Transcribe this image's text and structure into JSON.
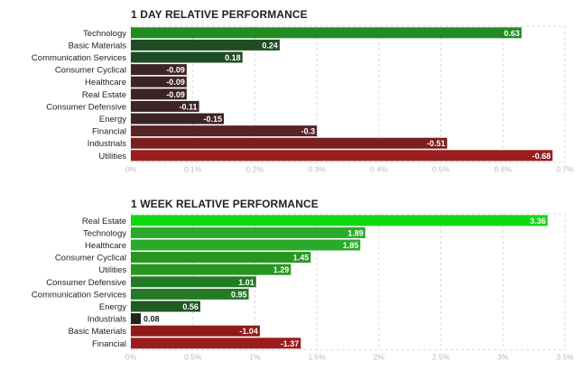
{
  "chart_data": [
    {
      "type": "bar",
      "orientation": "horizontal",
      "title": "1 DAY RELATIVE PERFORMANCE",
      "categories": [
        "Technology",
        "Basic Materials",
        "Communication Services",
        "Consumer Cyclical",
        "Healthcare",
        "Real Estate",
        "Consumer Defensive",
        "Energy",
        "Financial",
        "Industrials",
        "Utilities"
      ],
      "values": [
        0.63,
        0.24,
        0.18,
        -0.09,
        -0.09,
        -0.09,
        -0.11,
        -0.15,
        -0.3,
        -0.51,
        -0.68
      ],
      "value_labels": [
        "0.63",
        "0.24",
        "0.18",
        "-0.09",
        "-0.09",
        "-0.09",
        "-0.11",
        "-0.15",
        "-0.3",
        "-0.51",
        "-0.68"
      ],
      "colors": [
        "#228b22",
        "#1f4d23",
        "#1f4d23",
        "#3d2424",
        "#3d2424",
        "#3d2424",
        "#3d2424",
        "#3d2424",
        "#5a2424",
        "#7a1e1e",
        "#9a1c1c"
      ],
      "xlim": [
        0,
        0.7
      ],
      "xticks": [
        "0%",
        "0.1%",
        "0.2%",
        "0.3%",
        "0.4%",
        "0.5%",
        "0.6%",
        "0.7%"
      ],
      "bar_length": "absolute value",
      "grid": true
    },
    {
      "type": "bar",
      "orientation": "horizontal",
      "title": "1 WEEK RELATIVE PERFORMANCE",
      "categories": [
        "Real Estate",
        "Technology",
        "Healthcare",
        "Consumer Cyclical",
        "Utilities",
        "Consumer Defensive",
        "Communication Services",
        "Energy",
        "Industrials",
        "Basic Materials",
        "Financial"
      ],
      "values": [
        3.36,
        1.89,
        1.85,
        1.45,
        1.29,
        1.01,
        0.95,
        0.56,
        0.08,
        -1.04,
        -1.37
      ],
      "value_labels": [
        "3.36",
        "1.89",
        "1.85",
        "1.45",
        "1.29",
        "1.01",
        "0.95",
        "0.56",
        "0.08",
        "-1.04",
        "-1.37"
      ],
      "colors": [
        "#11d911",
        "#2aaa2a",
        "#2aaa2a",
        "#26961f",
        "#26961f",
        "#247a24",
        "#247a24",
        "#1f5a22",
        "#222222",
        "#8e1a1a",
        "#9a1c1c"
      ],
      "xlim": [
        0,
        3.5
      ],
      "xticks": [
        "0%",
        "0.5%",
        "1%",
        "1.5%",
        "2%",
        "2.5%",
        "3%",
        "3.5%"
      ],
      "bar_length": "absolute value",
      "grid": true
    }
  ]
}
